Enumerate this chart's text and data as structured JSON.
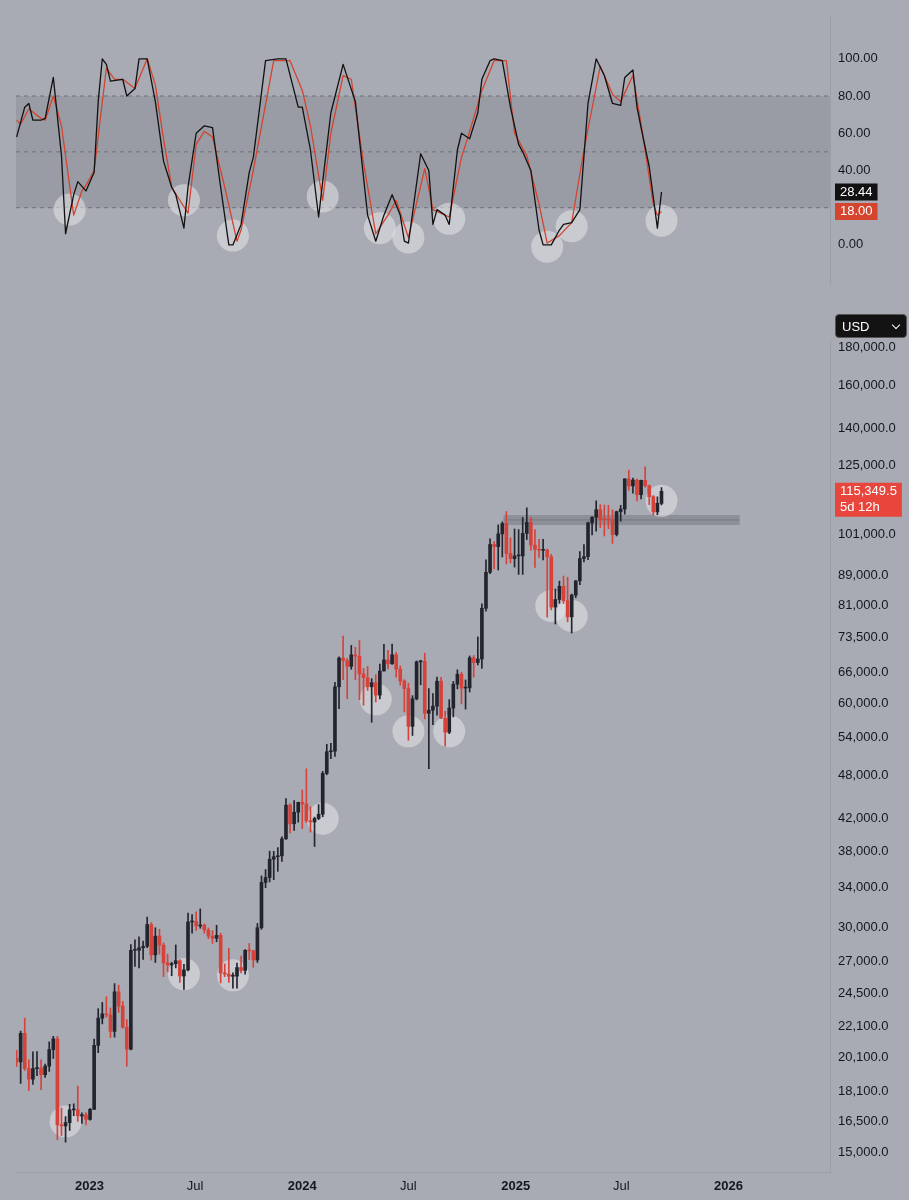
{
  "chart_data": [
    {
      "type": "line",
      "xlim": [
        "2022-08-28",
        "2026-06-24"
      ],
      "ylim": [
        -21,
        123
      ],
      "yticks": [
        {
          "value": 0,
          "label": "0.00"
        },
        {
          "value": 40,
          "label": "40.00"
        },
        {
          "value": 60,
          "label": "60.00"
        },
        {
          "value": 80,
          "label": "80.00"
        },
        {
          "value": 100,
          "label": "100.00"
        }
      ],
      "tick_labels": "y",
      "legend": false,
      "marker": "none",
      "bands": [
        {
          "axis": "y",
          "from": 20,
          "to": 80,
          "color": "#9a9ca5"
        }
      ],
      "ref_lines": [
        {
          "axis": "y",
          "value": 80,
          "line_style": "dashed",
          "color": "#6f7179"
        },
        {
          "axis": "y",
          "value": 50,
          "line_style": "dashed",
          "color": "#6f7179"
        },
        {
          "axis": "y",
          "value": 20,
          "line_style": "dashed",
          "color": "#6f7179"
        }
      ],
      "series": [
        {
          "type": "line",
          "color": "#111111",
          "x": [
            "2022-08-29",
            "2022-09-12",
            "2022-09-19",
            "2022-09-26",
            "2022-10-10",
            "2022-10-17",
            "2022-10-31",
            "2022-11-14",
            "2022-11-21",
            "2022-12-05",
            "2022-12-12",
            "2022-12-26",
            "2023-01-09",
            "2023-01-16",
            "2023-01-23",
            "2023-01-30",
            "2023-02-06",
            "2023-02-27",
            "2023-03-06",
            "2023-03-20",
            "2023-03-27",
            "2023-04-10",
            "2023-04-24",
            "2023-05-08",
            "2023-05-22",
            "2023-05-29",
            "2023-06-12",
            "2023-06-19",
            "2023-07-03",
            "2023-07-17",
            "2023-07-31",
            "2023-08-14",
            "2023-08-28",
            "2023-09-04",
            "2023-09-18",
            "2023-10-02",
            "2023-10-09",
            "2023-10-30",
            "2023-11-20",
            "2023-12-04",
            "2023-12-25",
            "2024-01-01",
            "2024-01-15",
            "2024-01-29",
            "2024-02-05",
            "2024-02-19",
            "2024-03-11",
            "2024-04-01",
            "2024-04-22",
            "2024-05-06",
            "2024-05-20",
            "2024-06-03",
            "2024-06-17",
            "2024-06-24",
            "2024-07-01",
            "2024-07-22",
            "2024-08-05",
            "2024-08-12",
            "2024-08-19",
            "2024-09-02",
            "2024-09-09",
            "2024-09-23",
            "2024-09-30",
            "2024-10-14",
            "2024-10-28",
            "2024-11-04",
            "2024-11-18",
            "2024-11-25",
            "2024-12-09",
            "2024-12-23",
            "2025-01-06",
            "2025-01-13",
            "2025-01-27",
            "2025-02-10",
            "2025-02-17",
            "2025-03-03",
            "2025-03-17",
            "2025-03-24",
            "2025-04-07",
            "2025-04-21",
            "2025-05-05",
            "2025-05-19",
            "2025-06-02",
            "2025-06-16",
            "2025-06-30",
            "2025-07-07",
            "2025-07-21",
            "2025-07-28",
            "2025-08-04",
            "2025-08-18",
            "2025-09-01",
            "2025-09-08"
          ],
          "values": [
            58,
            74,
            76,
            67,
            67,
            68,
            90,
            48,
            6,
            27,
            34,
            29,
            39,
            77,
            100,
            97,
            88,
            89,
            80,
            84,
            100,
            100,
            77,
            45,
            31,
            27,
            9,
            31,
            60,
            64,
            63,
            31,
            0,
            0,
            11,
            39,
            47,
            99,
            100,
            100,
            74,
            74,
            51,
            15,
            34,
            71,
            97,
            77,
            16,
            2,
            16,
            27,
            16,
            2,
            1,
            49,
            40,
            11,
            19,
            16,
            11,
            51,
            60,
            57,
            71,
            89,
            99,
            100,
            99,
            74,
            54,
            50,
            40,
            8,
            0,
            0,
            8,
            11,
            12,
            19,
            76,
            100,
            91,
            76,
            75,
            90,
            94,
            74,
            63,
            42,
            9,
            28.44
          ]
        },
        {
          "type": "line",
          "color": "#d4442f",
          "x": [
            "2022-08-29",
            "2022-09-05",
            "2022-09-19",
            "2022-10-10",
            "2022-10-17",
            "2022-10-31",
            "2022-11-14",
            "2022-12-05",
            "2022-12-19",
            "2022-12-26",
            "2023-01-09",
            "2023-01-30",
            "2023-02-13",
            "2023-02-27",
            "2023-03-20",
            "2023-04-10",
            "2023-04-24",
            "2023-05-08",
            "2023-05-22",
            "2023-06-19",
            "2023-07-03",
            "2023-07-17",
            "2023-07-31",
            "2023-08-21",
            "2023-09-11",
            "2023-09-18",
            "2023-10-09",
            "2023-11-13",
            "2023-12-11",
            "2024-01-01",
            "2024-01-15",
            "2024-02-05",
            "2024-02-19",
            "2024-03-11",
            "2024-03-25",
            "2024-04-15",
            "2024-05-06",
            "2024-05-27",
            "2024-06-10",
            "2024-07-01",
            "2024-07-29",
            "2024-08-12",
            "2024-09-09",
            "2024-09-30",
            "2024-10-14",
            "2024-11-04",
            "2024-11-25",
            "2024-12-16",
            "2024-12-30",
            "2025-01-20",
            "2025-02-10",
            "2025-02-24",
            "2025-03-17",
            "2025-04-07",
            "2025-04-28",
            "2025-05-26",
            "2025-06-16",
            "2025-06-30",
            "2025-07-21",
            "2025-08-04",
            "2025-08-25",
            "2025-09-01",
            "2025-09-08"
          ],
          "values": [
            67,
            65,
            73,
            68,
            67,
            80,
            64,
            16,
            29,
            32,
            40,
            95,
            89,
            89,
            84,
            100,
            86,
            57,
            31,
            17,
            54,
            61,
            58,
            31,
            2,
            8,
            40,
            99,
            99,
            83,
            64,
            24,
            60,
            91,
            89,
            44,
            6,
            16,
            24,
            4,
            41,
            19,
            15,
            47,
            61,
            83,
            99,
            99,
            60,
            48,
            22,
            1,
            5,
            12,
            51,
            96,
            81,
            77,
            91,
            65,
            22,
            16,
            18
          ]
        },
        {
          "type": "scatter",
          "color": "#e4e5e9",
          "marker": "circle",
          "x": [
            "2022-11-28",
            "2023-06-12",
            "2023-09-04",
            "2024-02-05",
            "2024-05-13",
            "2024-07-01",
            "2024-09-09",
            "2025-02-24",
            "2025-04-07",
            "2025-09-08"
          ],
          "values": [
            19,
            24,
            5,
            26,
            9,
            4,
            14,
            -1,
            10,
            13
          ]
        }
      ],
      "annotations": [
        "28.44",
        "18.00"
      ]
    },
    {
      "type": "candlestick",
      "log": true,
      "legend": false,
      "marker": "none",
      "xlim": [
        "2022-08-28",
        "2026-06-24"
      ],
      "xticks": [
        {
          "value": "2023-01-01",
          "label": "2023"
        },
        {
          "value": "2023-07-01",
          "label": "Jul"
        },
        {
          "value": "2024-01-01",
          "label": "2024"
        },
        {
          "value": "2024-07-01",
          "label": "Jul"
        },
        {
          "value": "2025-01-01",
          "label": "2025"
        },
        {
          "value": "2025-07-01",
          "label": "Jul"
        },
        {
          "value": "2026-01-01",
          "label": "2026"
        }
      ],
      "ylim": [
        14100,
        184000
      ],
      "yticks": [
        {
          "value": 15000,
          "label": "15,000.0"
        },
        {
          "value": 16500,
          "label": "16,500.0"
        },
        {
          "value": 18100,
          "label": "18,100.0"
        },
        {
          "value": 20100,
          "label": "20,100.0"
        },
        {
          "value": 22100,
          "label": "22,100.0"
        },
        {
          "value": 24500,
          "label": "24,500.0"
        },
        {
          "value": 27000,
          "label": "27,000.0"
        },
        {
          "value": 30000,
          "label": "30,000.0"
        },
        {
          "value": 34000,
          "label": "34,000.0"
        },
        {
          "value": 38000,
          "label": "38,000.0"
        },
        {
          "value": 42000,
          "label": "42,000.0"
        },
        {
          "value": 48000,
          "label": "48,000.0"
        },
        {
          "value": 54000,
          "label": "54,000.0"
        },
        {
          "value": 60000,
          "label": "60,000.0"
        },
        {
          "value": 66000,
          "label": "66,000.0"
        },
        {
          "value": 73500,
          "label": "73,500.0"
        },
        {
          "value": 81000,
          "label": "81,000.0"
        },
        {
          "value": 89000,
          "label": "89,000.0"
        },
        {
          "value": 101000,
          "label": "101,000.0"
        },
        {
          "value": 125000,
          "label": "125,000.0"
        },
        {
          "value": 140000,
          "label": "140,000.0"
        },
        {
          "value": 160000,
          "label": "160,000.0"
        },
        {
          "value": 180000,
          "label": "180,000.0"
        }
      ],
      "series": [
        {
          "type": "candlestick",
          "x": [
            "2022-08-29",
            "2022-09-05",
            "2022-09-12",
            "2022-09-19",
            "2022-09-26",
            "2022-10-03",
            "2022-10-10",
            "2022-10-17",
            "2022-10-24",
            "2022-10-31",
            "2022-11-07",
            "2022-11-14",
            "2022-11-21",
            "2022-11-28",
            "2022-12-05",
            "2022-12-12",
            "2022-12-19",
            "2022-12-26",
            "2023-01-02",
            "2023-01-09",
            "2023-01-16",
            "2023-01-23",
            "2023-01-30",
            "2023-02-06",
            "2023-02-13",
            "2023-02-20",
            "2023-02-27",
            "2023-03-06",
            "2023-03-13",
            "2023-03-20",
            "2023-03-27",
            "2023-04-03",
            "2023-04-10",
            "2023-04-17",
            "2023-04-24",
            "2023-05-01",
            "2023-05-08",
            "2023-05-15",
            "2023-05-22",
            "2023-05-29",
            "2023-06-05",
            "2023-06-12",
            "2023-06-19",
            "2023-06-26",
            "2023-07-03",
            "2023-07-10",
            "2023-07-17",
            "2023-07-24",
            "2023-07-31",
            "2023-08-07",
            "2023-08-14",
            "2023-08-21",
            "2023-08-28",
            "2023-09-04",
            "2023-09-11",
            "2023-09-18",
            "2023-09-25",
            "2023-10-02",
            "2023-10-09",
            "2023-10-16",
            "2023-10-23",
            "2023-10-30",
            "2023-11-06",
            "2023-11-13",
            "2023-11-20",
            "2023-11-27",
            "2023-12-04",
            "2023-12-11",
            "2023-12-18",
            "2023-12-25",
            "2024-01-01",
            "2024-01-08",
            "2024-01-15",
            "2024-01-22",
            "2024-01-29",
            "2024-02-05",
            "2024-02-12",
            "2024-02-19",
            "2024-02-26",
            "2024-03-04",
            "2024-03-11",
            "2024-03-18",
            "2024-03-25",
            "2024-04-01",
            "2024-04-08",
            "2024-04-15",
            "2024-04-22",
            "2024-04-29",
            "2024-05-06",
            "2024-05-13",
            "2024-05-20",
            "2024-05-27",
            "2024-06-03",
            "2024-06-10",
            "2024-06-17",
            "2024-06-24",
            "2024-07-01",
            "2024-07-08",
            "2024-07-15",
            "2024-07-22",
            "2024-07-29",
            "2024-08-05",
            "2024-08-12",
            "2024-08-19",
            "2024-08-26",
            "2024-09-02",
            "2024-09-09",
            "2024-09-16",
            "2024-09-23",
            "2024-09-30",
            "2024-10-07",
            "2024-10-14",
            "2024-10-21",
            "2024-10-28",
            "2024-11-04",
            "2024-11-11",
            "2024-11-18",
            "2024-11-25",
            "2024-12-02",
            "2024-12-09",
            "2024-12-16",
            "2024-12-23",
            "2024-12-30",
            "2025-01-06",
            "2025-01-13",
            "2025-01-20",
            "2025-01-27",
            "2025-02-03",
            "2025-02-10",
            "2025-02-17",
            "2025-02-24",
            "2025-03-03",
            "2025-03-10",
            "2025-03-17",
            "2025-03-24",
            "2025-03-31",
            "2025-04-07",
            "2025-04-14",
            "2025-04-21",
            "2025-04-28",
            "2025-05-05",
            "2025-05-12",
            "2025-05-19",
            "2025-05-26",
            "2025-06-02",
            "2025-06-09",
            "2025-06-16",
            "2025-06-23",
            "2025-06-30",
            "2025-07-07",
            "2025-07-14",
            "2025-07-21",
            "2025-07-28",
            "2025-08-04",
            "2025-08-11",
            "2025-08-18",
            "2025-08-25",
            "2025-09-01",
            "2025-09-08"
          ],
          "ohlc": [
            [
              20050,
              20550,
              19550,
              19830
            ],
            [
              19830,
              21800,
              18550,
              21650
            ],
            [
              21650,
              22700,
              19320,
              19420
            ],
            [
              19420,
              19950,
              18150,
              18800
            ],
            [
              18800,
              20450,
              18500,
              19420
            ],
            [
              19420,
              20470,
              19000,
              19450
            ],
            [
              19450,
              19950,
              18200,
              19070
            ],
            [
              19070,
              19700,
              18900,
              19570
            ],
            [
              19570,
              21100,
              19250,
              20600
            ],
            [
              20600,
              21450,
              20050,
              21300
            ],
            [
              21300,
              21450,
              15600,
              16330
            ],
            [
              16330,
              17200,
              15800,
              16280
            ],
            [
              16280,
              16750,
              15480,
              16440
            ],
            [
              16440,
              17400,
              16050,
              17100
            ],
            [
              17100,
              17420,
              16800,
              17100
            ],
            [
              17100,
              18400,
              16500,
              16780
            ],
            [
              16780,
              16950,
              16400,
              16840
            ],
            [
              16840,
              16960,
              16330,
              16610
            ],
            [
              16610,
              17180,
              16560,
              17130
            ],
            [
              17130,
              21280,
              17120,
              20870
            ],
            [
              20870,
              23370,
              20400,
              22700
            ],
            [
              22700,
              23820,
              22300,
              23000
            ],
            [
              23000,
              24250,
              22760,
              22930
            ],
            [
              22930,
              23420,
              21370,
              21780
            ],
            [
              21780,
              25250,
              21400,
              24620
            ],
            [
              24620,
              25130,
              23100,
              23550
            ],
            [
              23550,
              23900,
              21980,
              22070
            ],
            [
              22070,
              22600,
              19570,
              20620
            ],
            [
              20620,
              28470,
              20580,
              27980
            ],
            [
              27980,
              28900,
              26620,
              27990
            ],
            [
              27990,
              29180,
              26500,
              28200
            ],
            [
              28200,
              28800,
              27200,
              28330
            ],
            [
              28330,
              31000,
              28200,
              30300
            ],
            [
              30300,
              30480,
              27150,
              27590
            ],
            [
              27590,
              30000,
              26950,
              29230
            ],
            [
              29230,
              29860,
              27650,
              28430
            ],
            [
              28430,
              28630,
              25810,
              26920
            ],
            [
              26920,
              27650,
              26180,
              26750
            ],
            [
              26750,
              26970,
              25870,
              26850
            ],
            [
              26850,
              28450,
              26500,
              27100
            ],
            [
              27100,
              27200,
              25350,
              25850
            ],
            [
              25850,
              26800,
              24800,
              26340
            ],
            [
              26340,
              31400,
              26250,
              30540
            ],
            [
              30540,
              31250,
              29500,
              30590
            ],
            [
              30590,
              31500,
              29750,
              30160
            ],
            [
              30160,
              31800,
              29950,
              30250
            ],
            [
              30250,
              30350,
              29500,
              29780
            ],
            [
              29780,
              29980,
              29000,
              29230
            ],
            [
              29230,
              29720,
              28580,
              29040
            ],
            [
              29040,
              30230,
              28730,
              29300
            ],
            [
              29300,
              29500,
              25300,
              26100
            ],
            [
              26100,
              26830,
              25800,
              26000
            ],
            [
              26000,
              28150,
              25350,
              25830
            ],
            [
              25830,
              26100,
              24900,
              25840
            ],
            [
              25840,
              26900,
              24900,
              26530
            ],
            [
              26530,
              27480,
              26100,
              26300
            ],
            [
              26300,
              28050,
              26000,
              27980
            ],
            [
              27980,
              28580,
              27200,
              27930
            ],
            [
              27930,
              27990,
              26550,
              27160
            ],
            [
              27160,
              30400,
              26950,
              30000
            ],
            [
              30000,
              35200,
              29850,
              34500
            ],
            [
              34500,
              35900,
              33950,
              35030
            ],
            [
              35030,
              38000,
              34560,
              37060
            ],
            [
              37060,
              37980,
              34800,
              37350
            ],
            [
              37350,
              38420,
              35700,
              37450
            ],
            [
              37450,
              39700,
              36800,
              39470
            ],
            [
              39470,
              44700,
              39400,
              43800
            ],
            [
              43800,
              44000,
              40200,
              41350
            ],
            [
              41350,
              44400,
              40500,
              42850
            ],
            [
              42850,
              44200,
              41550,
              44180
            ],
            [
              44180,
              45900,
              40750,
              43950
            ],
            [
              43950,
              49000,
              41500,
              41730
            ],
            [
              41730,
              43580,
              40300,
              41580
            ],
            [
              41580,
              42200,
              38550,
              42030
            ],
            [
              42030,
              43880,
              41870,
              42580
            ],
            [
              42580,
              48600,
              42250,
              48300
            ],
            [
              48300,
              52850,
              48100,
              51650
            ],
            [
              51650,
              52980,
              50550,
              51730
            ],
            [
              51730,
              64000,
              50900,
              63100
            ],
            [
              63100,
              69200,
              59000,
              68950
            ],
            [
              68950,
              73780,
              64500,
              68400
            ],
            [
              68400,
              68900,
              60800,
              67200
            ],
            [
              67200,
              71700,
              66600,
              69650
            ],
            [
              69650,
              71300,
              64500,
              69350
            ],
            [
              69350,
              72800,
              60650,
              65650
            ],
            [
              65650,
              66800,
              59600,
              64900
            ],
            [
              64900,
              67200,
              62400,
              63100
            ],
            [
              63100,
              64700,
              56550,
              63900
            ],
            [
              63900,
              65500,
              60200,
              61500
            ],
            [
              61500,
              67700,
              60800,
              66250
            ],
            [
              66250,
              71950,
              66250,
              68550
            ],
            [
              68550,
              70600,
              66700,
              67750
            ],
            [
              67750,
              72000,
              67600,
              69650
            ],
            [
              69650,
              70150,
              65000,
              66650
            ],
            [
              66650,
              67300,
              63400,
              64250
            ],
            [
              64250,
              64500,
              58400,
              62750
            ],
            [
              62750,
              63800,
              53500,
              55850
            ],
            [
              55850,
              61400,
              54300,
              60800
            ],
            [
              60800,
              68350,
              60600,
              68150
            ],
            [
              68150,
              68500,
              63500,
              68250
            ],
            [
              68250,
              70000,
              57150,
              58150
            ],
            [
              58150,
              62750,
              49000,
              58700
            ],
            [
              58700,
              61800,
              56150,
              59450
            ],
            [
              59450,
              65000,
              57800,
              64200
            ],
            [
              64200,
              64950,
              57200,
              57300
            ],
            [
              57300,
              58500,
              52550,
              54850
            ],
            [
              54850,
              60650,
              54600,
              59100
            ],
            [
              59100,
              64150,
              57500,
              63600
            ],
            [
              63600,
              66500,
              62700,
              65600
            ],
            [
              65600,
              66000,
              59850,
              62850
            ],
            [
              62850,
              64450,
              58900,
              62900
            ],
            [
              62900,
              69400,
              62100,
              69000
            ],
            [
              69000,
              69500,
              65000,
              68000
            ],
            [
              68000,
              73600,
              67500,
              68750
            ],
            [
              68750,
              81500,
              66800,
              80400
            ],
            [
              80400,
              93400,
              79700,
              89850
            ],
            [
              89850,
              99600,
              89450,
              97900
            ],
            [
              97900,
              98800,
              90800,
              97250
            ],
            [
              97250,
              104000,
              90500,
              101150
            ],
            [
              101150,
              105000,
              94200,
              104450
            ],
            [
              104450,
              108350,
              92200,
              95200
            ],
            [
              95200,
              99900,
              92500,
              93700
            ],
            [
              93700,
              102700,
              91300,
              94500
            ],
            [
              94500,
              102500,
              89250,
              94500
            ],
            [
              94500,
              106400,
              89250,
              101300
            ],
            [
              101300,
              109600,
              99400,
              104800
            ],
            [
              104800,
              106450,
              96150,
              97700
            ],
            [
              97700,
              102500,
              91200,
              96450
            ],
            [
              96450,
              99500,
              94100,
              96150
            ],
            [
              96150,
              99500,
              93350,
              96250
            ],
            [
              96250,
              96500,
              78250,
              94250
            ],
            [
              94250,
              95000,
              80000,
              80700
            ],
            [
              80700,
              85300,
              76600,
              82600
            ],
            [
              82600,
              87450,
              81650,
              86050
            ],
            [
              86050,
              88800,
              81600,
              82300
            ],
            [
              82300,
              88500,
              77100,
              78300
            ],
            [
              78300,
              84000,
              74500,
              83750
            ],
            [
              83750,
              87600,
              83100,
              87500
            ],
            [
              87500,
              95750,
              86500,
              93750
            ],
            [
              93750,
              97900,
              92800,
              94300
            ],
            [
              94300,
              104900,
              93400,
              104650
            ],
            [
              104650,
              106700,
              100800,
              106450
            ],
            [
              106450,
              112000,
              102000,
              109000
            ],
            [
              109000,
              110700,
              103100,
              105750
            ],
            [
              105750,
              110550,
              100500,
              105700
            ],
            [
              105700,
              110500,
              102800,
              105600
            ],
            [
              105600,
              108950,
              98200,
              100950
            ],
            [
              100950,
              108500,
              100500,
              108350
            ],
            [
              108350,
              110500,
              105200,
              109200
            ],
            [
              109200,
              119900,
              107500,
              119850
            ],
            [
              119850,
              123200,
              115750,
              117300
            ],
            [
              117300,
              120200,
              114700,
              119400
            ],
            [
              119400,
              119800,
              112000,
              114200
            ],
            [
              114200,
              119400,
              112650,
              119300
            ],
            [
              119300,
              124450,
              116800,
              117400
            ],
            [
              117400,
              117600,
              110700,
              113500
            ],
            [
              113500,
              113800,
              107300,
              108250
            ],
            [
              108250,
              113400,
              107300,
              111150
            ],
            [
              111150,
              116700,
              110600,
              115349.5
            ]
          ],
          "colors": [
            "#d6433a",
            "#23252e",
            "#d6433a",
            "#d6433a",
            "#23252e",
            "#23252e",
            "#d6433a",
            "#23252e",
            "#23252e",
            "#23252e",
            "#d6433a",
            "#d6433a",
            "#23252e",
            "#23252e",
            "#23252e",
            "#d6433a",
            "#23252e",
            "#d6433a",
            "#23252e",
            "#23252e",
            "#23252e",
            "#23252e",
            "#d6433a",
            "#d6433a",
            "#23252e",
            "#d6433a",
            "#d6433a",
            "#d6433a",
            "#23252e",
            "#23252e",
            "#23252e",
            "#23252e",
            "#23252e",
            "#d6433a",
            "#23252e",
            "#d6433a",
            "#d6433a",
            "#d6433a",
            "#23252e",
            "#23252e",
            "#d6433a",
            "#23252e",
            "#23252e",
            "#23252e",
            "#d6433a",
            "#23252e",
            "#d6433a",
            "#d6433a",
            "#d6433a",
            "#23252e",
            "#d6433a",
            "#d6433a",
            "#d6433a",
            "#23252e",
            "#23252e",
            "#d6433a",
            "#23252e",
            "#d6433a",
            "#d6433a",
            "#23252e",
            "#23252e",
            "#23252e",
            "#23252e",
            "#23252e",
            "#23252e",
            "#23252e",
            "#23252e",
            "#d6433a",
            "#23252e",
            "#23252e",
            "#d6433a",
            "#d6433a",
            "#d6433a",
            "#23252e",
            "#23252e",
            "#23252e",
            "#23252e",
            "#23252e",
            "#23252e",
            "#23252e",
            "#d6433a",
            "#d6433a",
            "#23252e",
            "#d6433a",
            "#d6433a",
            "#d6433a",
            "#d6433a",
            "#23252e",
            "#d6433a",
            "#23252e",
            "#23252e",
            "#d6433a",
            "#23252e",
            "#d6433a",
            "#d6433a",
            "#d6433a",
            "#d6433a",
            "#23252e",
            "#23252e",
            "#23252e",
            "#d6433a",
            "#23252e",
            "#23252e",
            "#23252e",
            "#d6433a",
            "#d6433a",
            "#23252e",
            "#23252e",
            "#23252e",
            "#d6433a",
            "#23252e",
            "#23252e",
            "#d6433a",
            "#23252e",
            "#23252e",
            "#23252e",
            "#23252e",
            "#d6433a",
            "#23252e",
            "#23252e",
            "#d6433a",
            "#d6433a",
            "#23252e",
            "#23252e",
            "#23252e",
            "#23252e",
            "#d6433a",
            "#d6433a",
            "#d6433a",
            "#23252e",
            "#d6433a",
            "#d6433a",
            "#23252e",
            "#23252e",
            "#d6433a",
            "#d6433a",
            "#23252e",
            "#23252e",
            "#23252e",
            "#23252e",
            "#23252e",
            "#23252e",
            "#23252e",
            "#d6433a",
            "#d6433a",
            "#d6433a",
            "#d6433a",
            "#23252e",
            "#23252e",
            "#23252e",
            "#d6433a",
            "#23252e",
            "#d6433a",
            "#23252e",
            "#d6433a",
            "#d6433a",
            "#d6433a",
            "#23252e",
            "#23252e"
          ]
        },
        {
          "type": "line",
          "color": "#7c7e86",
          "x": [
            "2024-12-11",
            "2026-01-20"
          ],
          "values": [
            105600,
            105600
          ],
          "lower": [
            104000,
            104000
          ],
          "upper": [
            107200,
            107200
          ]
        },
        {
          "type": "scatter",
          "color": "#e4e5e9",
          "marker": "circle",
          "x": [
            "2022-11-21",
            "2023-06-12",
            "2023-09-04",
            "2024-02-05",
            "2024-05-06",
            "2024-07-01",
            "2024-09-09",
            "2025-03-03",
            "2025-04-07",
            "2025-09-08"
          ],
          "values": [
            16500,
            26000,
            25900,
            42000,
            60700,
            55000,
            55000,
            81000,
            78500,
            112000
          ]
        }
      ],
      "annotations": [
        "115,349.5",
        "5d 12h",
        "USD"
      ]
    }
  ]
}
